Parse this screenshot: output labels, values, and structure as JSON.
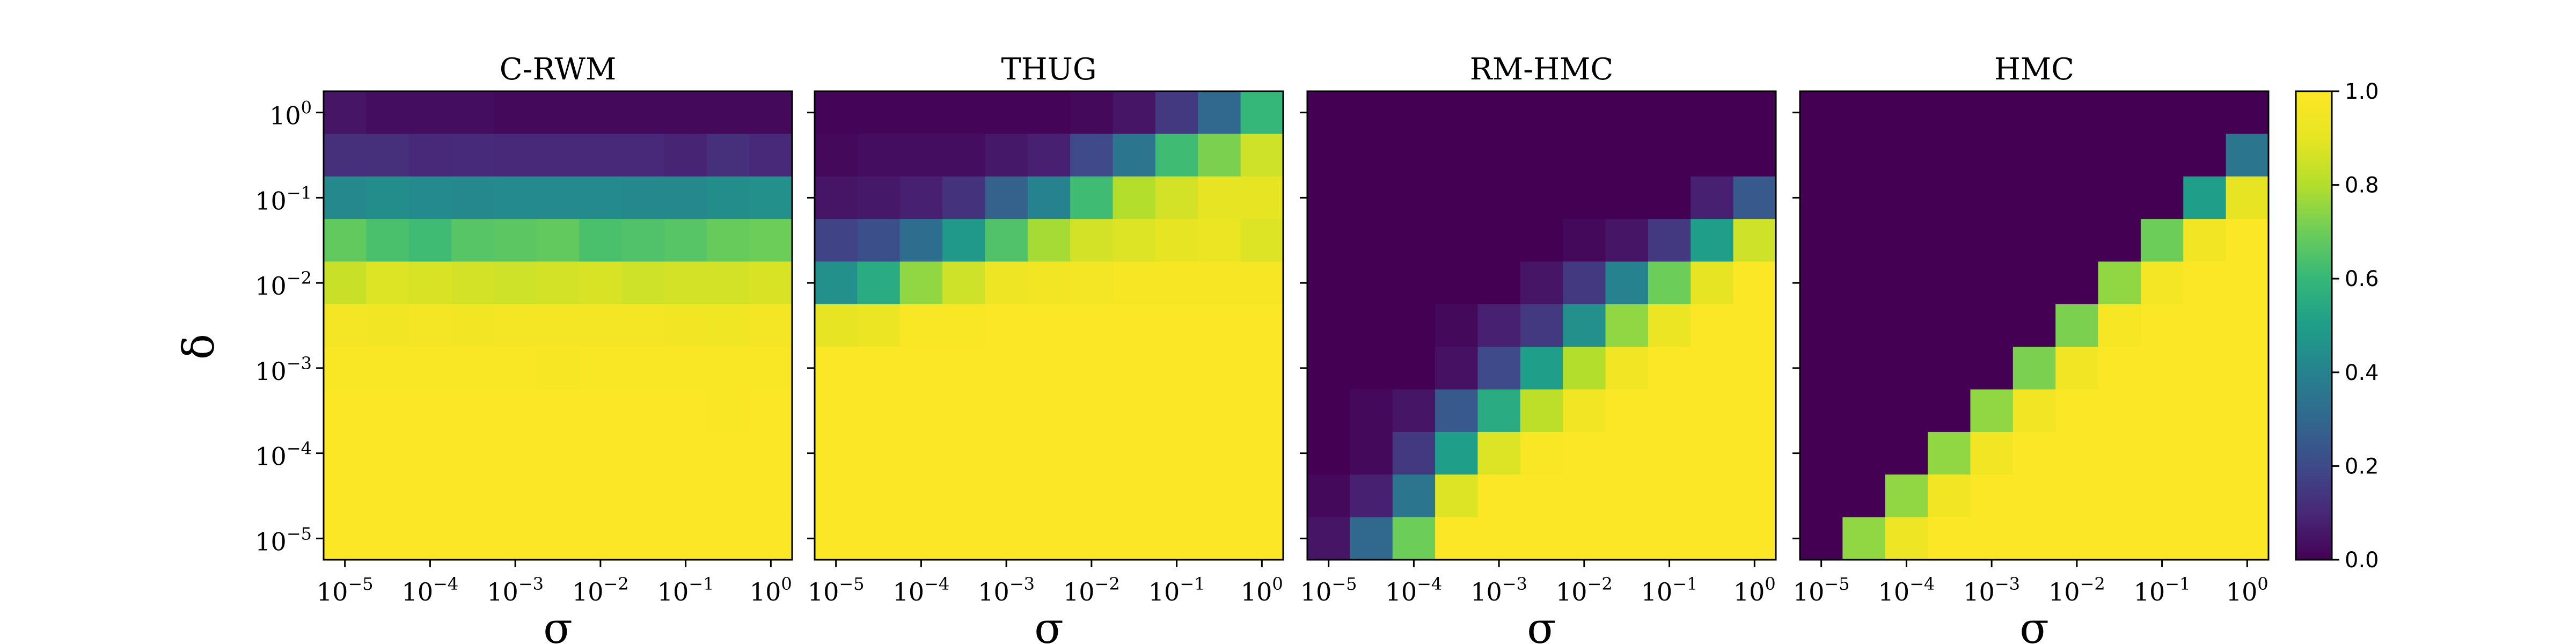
{
  "chart_data": {
    "type": "heatmap",
    "colormap": "viridis",
    "x_tick_labels": [
      {
        "base": "10",
        "exp": "−5"
      },
      {
        "base": "10",
        "exp": "−4"
      },
      {
        "base": "10",
        "exp": "−3"
      },
      {
        "base": "10",
        "exp": "−2"
      },
      {
        "base": "10",
        "exp": "−1"
      },
      {
        "base": "10",
        "exp": "0"
      }
    ],
    "y_tick_labels": [
      {
        "base": "10",
        "exp": "0"
      },
      {
        "base": "10",
        "exp": "−1"
      },
      {
        "base": "10",
        "exp": "−2"
      },
      {
        "base": "10",
        "exp": "−3"
      },
      {
        "base": "10",
        "exp": "−4"
      },
      {
        "base": "10",
        "exp": "−5"
      }
    ],
    "x_scale": "log",
    "y_scale": "log",
    "xlabel": "σ",
    "ylabel": "δ",
    "colorbar": {
      "range": [
        0.0,
        1.0
      ],
      "tick_labels": [
        "0.0",
        "0.2",
        "0.4",
        "0.6",
        "0.8",
        "1.0"
      ],
      "tick_values": [
        0.0,
        0.2,
        0.4,
        0.6,
        0.8,
        1.0
      ]
    },
    "panels": [
      {
        "title": "C-RWM",
        "values": [
          [
            0.05,
            0.03,
            0.03,
            0.03,
            0.02,
            0.02,
            0.02,
            0.02,
            0.02,
            0.02,
            0.02
          ],
          [
            0.12,
            0.12,
            0.1,
            0.11,
            0.1,
            0.1,
            0.1,
            0.1,
            0.09,
            0.12,
            0.1
          ],
          [
            0.42,
            0.44,
            0.43,
            0.42,
            0.43,
            0.43,
            0.43,
            0.42,
            0.42,
            0.44,
            0.45
          ],
          [
            0.68,
            0.64,
            0.62,
            0.66,
            0.67,
            0.68,
            0.64,
            0.65,
            0.66,
            0.69,
            0.7
          ],
          [
            0.84,
            0.88,
            0.87,
            0.86,
            0.85,
            0.86,
            0.87,
            0.85,
            0.86,
            0.86,
            0.87
          ],
          [
            0.96,
            0.95,
            0.96,
            0.95,
            0.96,
            0.96,
            0.96,
            0.96,
            0.95,
            0.94,
            0.96
          ],
          [
            0.98,
            0.98,
            0.98,
            0.98,
            0.98,
            0.97,
            0.98,
            0.98,
            0.98,
            0.98,
            0.98
          ],
          [
            0.99,
            0.99,
            0.99,
            0.99,
            0.99,
            0.99,
            0.99,
            0.99,
            0.99,
            0.98,
            0.99
          ],
          [
            0.99,
            0.99,
            0.99,
            0.99,
            0.99,
            0.99,
            0.99,
            0.99,
            0.99,
            0.99,
            0.99
          ],
          [
            0.99,
            0.99,
            0.99,
            0.99,
            0.99,
            0.99,
            0.99,
            0.99,
            0.99,
            0.99,
            0.99
          ],
          [
            0.99,
            0.99,
            0.99,
            0.99,
            0.99,
            0.99,
            0.99,
            0.99,
            0.99,
            0.99,
            0.99
          ]
        ]
      },
      {
        "title": "THUG",
        "values": [
          [
            0.01,
            0.01,
            0.01,
            0.01,
            0.01,
            0.01,
            0.02,
            0.05,
            0.15,
            0.3,
            0.6
          ],
          [
            0.02,
            0.03,
            0.03,
            0.03,
            0.06,
            0.08,
            0.2,
            0.35,
            0.62,
            0.72,
            0.85
          ],
          [
            0.05,
            0.06,
            0.08,
            0.13,
            0.28,
            0.4,
            0.62,
            0.8,
            0.86,
            0.9,
            0.9
          ],
          [
            0.18,
            0.22,
            0.32,
            0.48,
            0.65,
            0.78,
            0.86,
            0.88,
            0.9,
            0.92,
            0.88
          ],
          [
            0.45,
            0.55,
            0.75,
            0.85,
            0.93,
            0.95,
            0.96,
            0.97,
            0.97,
            0.97,
            0.97
          ],
          [
            0.9,
            0.92,
            0.98,
            0.98,
            0.99,
            0.99,
            0.99,
            0.99,
            0.99,
            0.99,
            0.99
          ],
          [
            0.99,
            0.99,
            0.99,
            0.99,
            0.99,
            0.99,
            0.99,
            0.99,
            0.99,
            0.99,
            0.99
          ],
          [
            0.99,
            0.99,
            0.99,
            0.99,
            0.99,
            0.99,
            0.99,
            0.99,
            0.99,
            0.99,
            0.99
          ],
          [
            0.99,
            0.99,
            0.99,
            0.99,
            0.99,
            0.99,
            0.99,
            0.99,
            0.99,
            0.99,
            0.99
          ],
          [
            0.99,
            0.99,
            0.99,
            0.99,
            0.99,
            0.99,
            0.99,
            0.99,
            0.99,
            0.99,
            0.99
          ],
          [
            0.99,
            0.99,
            0.99,
            0.99,
            0.99,
            0.99,
            0.99,
            0.99,
            0.99,
            0.99,
            0.99
          ]
        ]
      },
      {
        "title": "RM-HMC",
        "values": [
          [
            0.0,
            0.0,
            0.0,
            0.0,
            0.0,
            0.0,
            0.0,
            0.0,
            0.0,
            0.0,
            0.0
          ],
          [
            0.0,
            0.0,
            0.0,
            0.0,
            0.0,
            0.0,
            0.0,
            0.0,
            0.0,
            0.0,
            0.0
          ],
          [
            0.0,
            0.0,
            0.0,
            0.0,
            0.0,
            0.0,
            0.0,
            0.0,
            0.0,
            0.08,
            0.25
          ],
          [
            0.0,
            0.0,
            0.0,
            0.0,
            0.0,
            0.0,
            0.02,
            0.05,
            0.15,
            0.5,
            0.85
          ],
          [
            0.0,
            0.0,
            0.0,
            0.0,
            0.0,
            0.05,
            0.15,
            0.4,
            0.7,
            0.9,
            0.99
          ],
          [
            0.0,
            0.0,
            0.0,
            0.02,
            0.08,
            0.15,
            0.45,
            0.75,
            0.92,
            0.99,
            0.99
          ],
          [
            0.0,
            0.0,
            0.0,
            0.04,
            0.2,
            0.5,
            0.8,
            0.95,
            0.99,
            0.99,
            0.99
          ],
          [
            0.0,
            0.02,
            0.05,
            0.25,
            0.55,
            0.82,
            0.95,
            0.99,
            0.99,
            0.99,
            0.99
          ],
          [
            0.0,
            0.02,
            0.15,
            0.5,
            0.88,
            0.98,
            0.99,
            0.99,
            0.99,
            0.99,
            0.99
          ],
          [
            0.02,
            0.08,
            0.35,
            0.88,
            0.99,
            0.99,
            0.99,
            0.99,
            0.99,
            0.99,
            0.99
          ],
          [
            0.05,
            0.3,
            0.7,
            0.99,
            0.99,
            0.99,
            0.99,
            0.99,
            0.99,
            0.99,
            0.99
          ]
        ]
      },
      {
        "title": "HMC",
        "values": [
          [
            0.0,
            0.0,
            0.0,
            0.0,
            0.0,
            0.0,
            0.0,
            0.0,
            0.0,
            0.0,
            0.0
          ],
          [
            0.0,
            0.0,
            0.0,
            0.0,
            0.0,
            0.0,
            0.0,
            0.0,
            0.0,
            0.0,
            0.35
          ],
          [
            0.0,
            0.0,
            0.0,
            0.0,
            0.0,
            0.0,
            0.0,
            0.0,
            0.0,
            0.5,
            0.9
          ],
          [
            0.0,
            0.0,
            0.0,
            0.0,
            0.0,
            0.0,
            0.0,
            0.0,
            0.7,
            0.95,
            0.99
          ],
          [
            0.0,
            0.0,
            0.0,
            0.0,
            0.0,
            0.0,
            0.0,
            0.75,
            0.96,
            0.99,
            0.99
          ],
          [
            0.0,
            0.0,
            0.0,
            0.0,
            0.0,
            0.0,
            0.72,
            0.97,
            0.99,
            0.99,
            0.99
          ],
          [
            0.0,
            0.0,
            0.0,
            0.0,
            0.0,
            0.72,
            0.95,
            0.99,
            0.99,
            0.99,
            0.99
          ],
          [
            0.0,
            0.0,
            0.0,
            0.0,
            0.75,
            0.95,
            0.99,
            0.99,
            0.99,
            0.99,
            0.99
          ],
          [
            0.0,
            0.0,
            0.0,
            0.75,
            0.95,
            0.99,
            0.99,
            0.99,
            0.99,
            0.99,
            0.99
          ],
          [
            0.0,
            0.0,
            0.75,
            0.95,
            0.99,
            0.99,
            0.99,
            0.99,
            0.99,
            0.99,
            0.99
          ],
          [
            0.0,
            0.75,
            0.93,
            0.99,
            0.99,
            0.99,
            0.99,
            0.99,
            0.99,
            0.99,
            0.99
          ]
        ]
      }
    ]
  }
}
